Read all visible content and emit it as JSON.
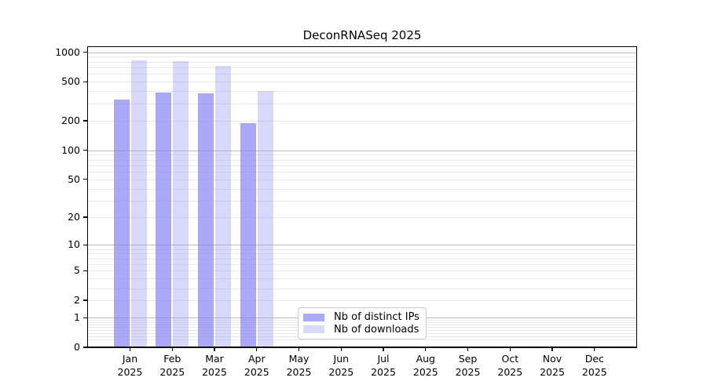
{
  "page": {
    "background": "#ffffff"
  },
  "chart_data": {
    "type": "bar",
    "title": "DeconRNASeq 2025",
    "months": [
      "Jan",
      "Feb",
      "Mar",
      "Apr",
      "May",
      "Jun",
      "Jul",
      "Aug",
      "Sep",
      "Oct",
      "Nov",
      "Dec"
    ],
    "year": "2025",
    "series": [
      {
        "name": "Nb of distinct IPs",
        "color": "#aaaaf8",
        "fill": "rgba(124,124,245,0.66)",
        "values": [
          330,
          390,
          380,
          190,
          0,
          0,
          0,
          0,
          0,
          0,
          0,
          0
        ]
      },
      {
        "name": "Nb of downloads",
        "color": "#d9d9f9",
        "fill": "rgba(148,148,241,0.36)",
        "values": [
          825,
          815,
          730,
          400,
          0,
          0,
          0,
          0,
          0,
          0,
          0,
          0
        ]
      }
    ],
    "y_scale": "log10(1+x)",
    "ylim": [
      0,
      1000
    ],
    "y_ticks": [
      0,
      1,
      2,
      5,
      10,
      20,
      50,
      100,
      200,
      500,
      1000
    ],
    "major_gridlines": [
      1,
      10,
      100,
      1000
    ],
    "minor_gridlines": [
      0.2,
      0.3,
      0.4,
      0.5,
      0.6,
      0.7,
      0.8,
      0.9,
      2,
      3,
      4,
      6,
      7,
      8,
      9,
      5,
      20,
      30,
      40,
      50,
      60,
      70,
      80,
      90,
      200,
      300,
      400,
      500,
      600,
      700,
      800,
      900
    ],
    "grid": "horizontal",
    "colors": {
      "grid_major": "#bdbdbd",
      "grid_minor": "#e9e9e9",
      "axis": "#000000",
      "text": "#000000",
      "legend_border": "#cccccc",
      "legend_background": "#ffffff"
    },
    "legend_position": "inside-bottom-center"
  }
}
